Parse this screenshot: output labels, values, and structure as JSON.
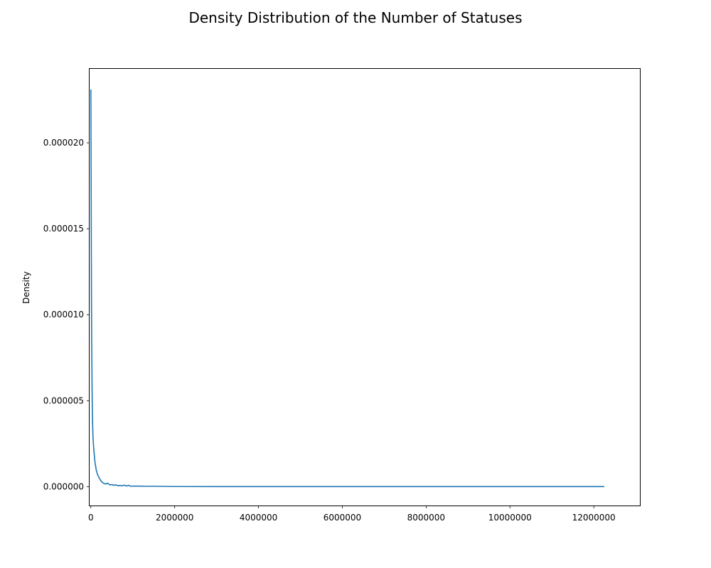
{
  "chart_data": {
    "type": "line",
    "title": "Density Distribution of the Number of Statuses",
    "xlabel": "",
    "ylabel": "Density",
    "xlim": [
      -30000,
      13100000
    ],
    "ylim": [
      -1.1e-06,
      2.43e-05
    ],
    "x_ticks": [
      0,
      2000000,
      4000000,
      6000000,
      8000000,
      10000000,
      12000000
    ],
    "x_tick_labels": [
      "0",
      "2000000",
      "4000000",
      "6000000",
      "8000000",
      "10000000",
      "12000000"
    ],
    "y_ticks": [
      0,
      5e-06,
      1e-05,
      1.5e-05,
      2e-05
    ],
    "y_tick_labels": [
      "0.000000",
      "0.000005",
      "0.000010",
      "0.000015",
      "0.000020"
    ],
    "grid": false,
    "series": [
      {
        "color": "#1f77b4",
        "x": [
          0,
          5000,
          10000,
          15000,
          20000,
          30000,
          40000,
          50000,
          60000,
          80000,
          100000,
          130000,
          160000,
          200000,
          250000,
          300000,
          350000,
          400000,
          450000,
          500000,
          550000,
          600000,
          650000,
          700000,
          750000,
          800000,
          850000,
          900000,
          950000,
          1000000,
          1200000,
          1300000,
          1500000,
          1800000,
          2000000,
          3000000,
          5000000,
          8000000,
          10000000,
          12250000
        ],
        "y": [
          2.31e-05,
          1.95e-05,
          1.5e-05,
          1.1e-05,
          8.5e-06,
          5.5e-06,
          3.8e-06,
          3e-06,
          2.5e-06,
          1.9e-06,
          1.4e-06,
          9.5e-07,
          7e-07,
          5e-07,
          3e-07,
          2e-07,
          1.5e-07,
          2e-07,
          1e-07,
          1.2e-07,
          8e-08,
          1e-07,
          5e-08,
          7e-08,
          4e-08,
          9e-08,
          3e-08,
          8e-08,
          2e-08,
          3e-08,
          3e-08,
          2e-08,
          2e-08,
          1e-08,
          5e-09,
          3e-09,
          2e-09,
          1e-09,
          1e-09,
          1e-09
        ]
      }
    ]
  }
}
